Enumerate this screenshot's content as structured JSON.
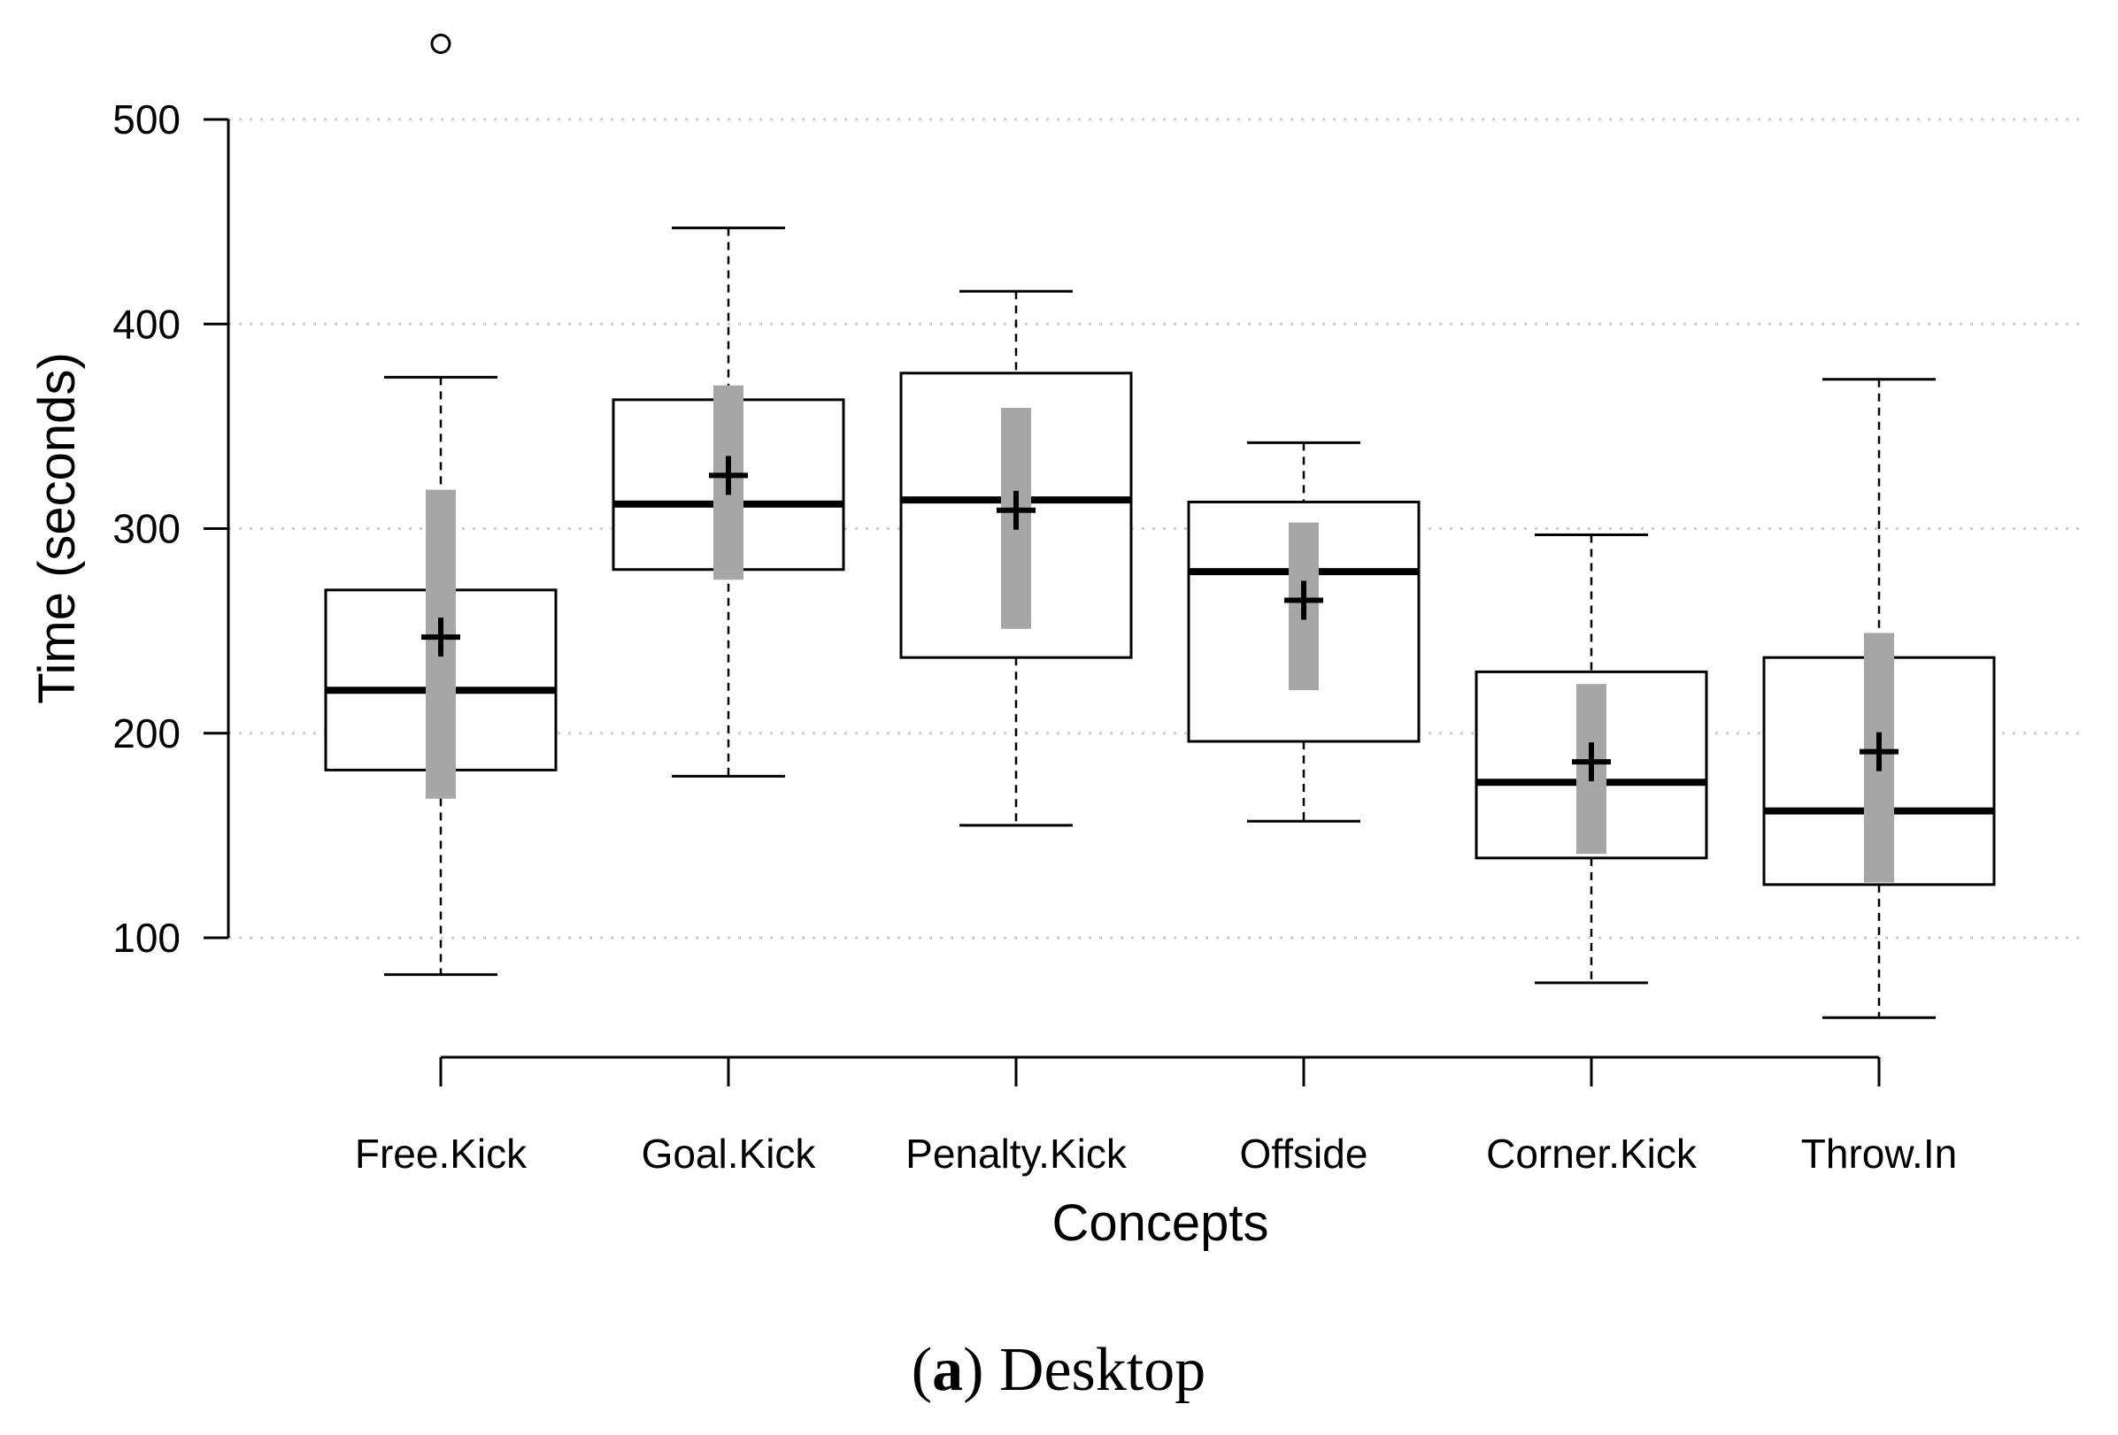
{
  "caption": {
    "label": "a",
    "text": "Desktop"
  },
  "chart_data": {
    "type": "box",
    "xlabel": "Concepts",
    "ylabel": "Time  (seconds)",
    "yticks": [
      100,
      200,
      300,
      400,
      500
    ],
    "grid": "horizontal dotted",
    "categories": [
      "Free.Kick",
      "Goal.Kick",
      "Penalty.Kick",
      "Offside",
      "Corner.Kick",
      "Throw.In"
    ],
    "boxes": [
      {
        "whisker_low": 82,
        "q1": 182,
        "median": 221,
        "q3": 270,
        "whisker_high": 374,
        "mean": 247,
        "ci_low": 168,
        "ci_high": 319,
        "outliers": [
          537
        ]
      },
      {
        "whisker_low": 179,
        "q1": 280,
        "median": 312,
        "q3": 363,
        "whisker_high": 447,
        "mean": 326,
        "ci_low": 275,
        "ci_high": 370,
        "outliers": []
      },
      {
        "whisker_low": 155,
        "q1": 237,
        "median": 314,
        "q3": 376,
        "whisker_high": 416,
        "mean": 309,
        "ci_low": 251,
        "ci_high": 359,
        "outliers": []
      },
      {
        "whisker_low": 157,
        "q1": 196,
        "median": 279,
        "q3": 313,
        "whisker_high": 342,
        "mean": 265,
        "ci_low": 221,
        "ci_high": 303,
        "outliers": []
      },
      {
        "whisker_low": 78,
        "q1": 139,
        "median": 176,
        "q3": 230,
        "whisker_high": 297,
        "mean": 186,
        "ci_low": 141,
        "ci_high": 224,
        "outliers": []
      },
      {
        "whisker_low": 61,
        "q1": 126,
        "median": 162,
        "q3": 237,
        "whisker_high": 373,
        "mean": 191,
        "ci_low": 127,
        "ci_high": 249,
        "outliers": []
      }
    ],
    "colors": {
      "box": "#000000",
      "ci_bar": "#a6a6a6",
      "grid": "#cccccc",
      "whisker": "#000000"
    }
  }
}
